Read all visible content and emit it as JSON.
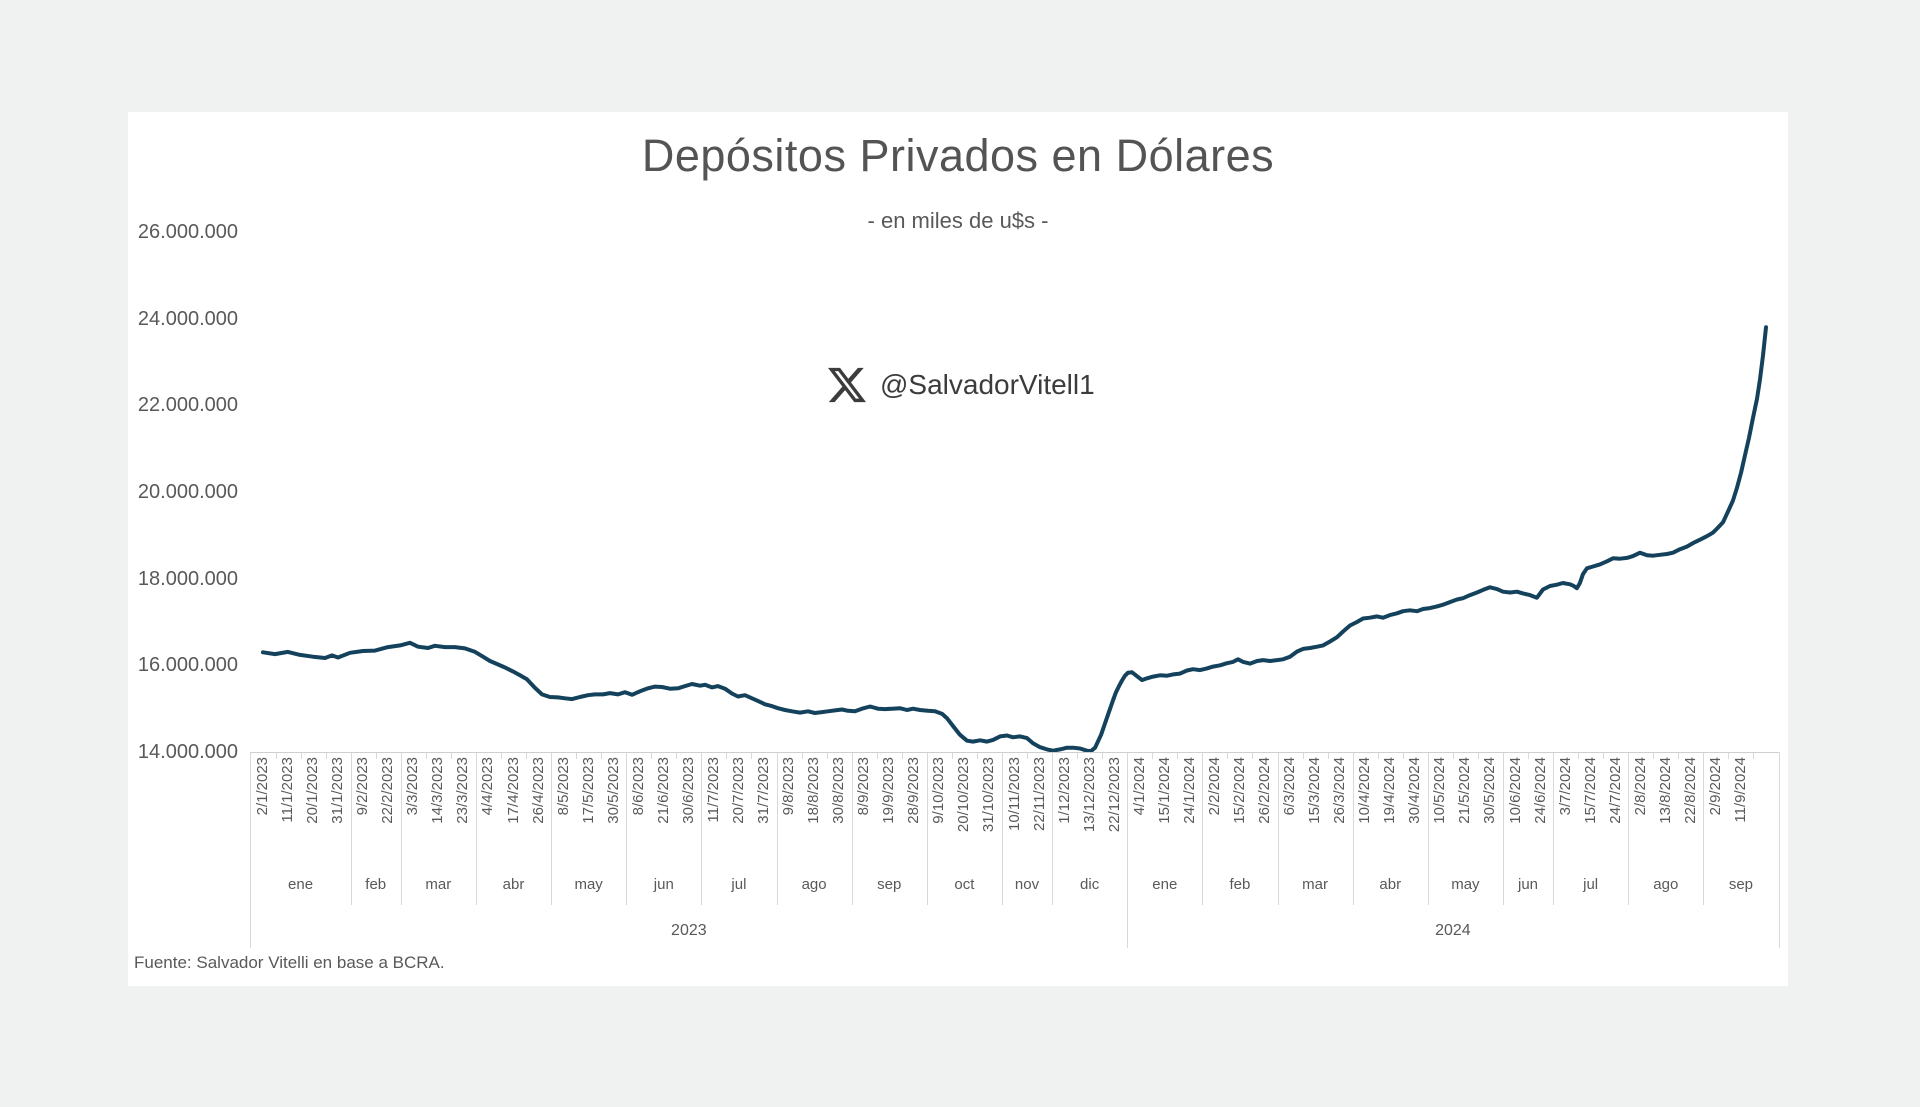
{
  "page": {
    "background": "#f0f1f1",
    "card_background": "#ffffff"
  },
  "header": {
    "title": "Depósitos Privados en Dólares",
    "subtitle": "- en miles de u$s -"
  },
  "watermark": {
    "icon": "x-logo-icon",
    "handle": "@SalvadorVitell1"
  },
  "footer": {
    "source_note": "Fuente: Salvador Vitelli en base a BCRA."
  },
  "chart_data": {
    "type": "line",
    "title": "Depósitos Privados en Dólares",
    "subtitle": "- en miles de u$s -",
    "unit": "miles de u$s",
    "line_color": "#14425c",
    "grid": false,
    "legend": "none",
    "ylim": [
      14000000,
      26000000
    ],
    "y_ticks": [
      {
        "label": "26.000.000",
        "value": 26
      },
      {
        "label": "24.000.000",
        "value": 24
      },
      {
        "label": "22.000.000",
        "value": 22
      },
      {
        "label": "20.000.000",
        "value": 20
      },
      {
        "label": "18.000.000",
        "value": 18
      },
      {
        "label": "16.000.000",
        "value": 16
      },
      {
        "label": "14.000.000",
        "value": 14
      }
    ],
    "y_value_multiplier": 1000000,
    "x_tick_labels": [
      "2/1/2023",
      "11/1/2023",
      "20/1/2023",
      "31/1/2023",
      "9/2/2023",
      "22/2/2023",
      "3/3/2023",
      "14/3/2023",
      "23/3/2023",
      "4/4/2023",
      "17/4/2023",
      "26/4/2023",
      "8/5/2023",
      "17/5/2023",
      "30/5/2023",
      "8/6/2023",
      "21/6/2023",
      "30/6/2023",
      "11/7/2023",
      "20/7/2023",
      "31/7/2023",
      "9/8/2023",
      "18/8/2023",
      "30/8/2023",
      "8/9/2023",
      "19/9/2023",
      "28/9/2023",
      "9/10/2023",
      "20/10/2023",
      "31/10/2023",
      "10/11/2023",
      "22/11/2023",
      "1/12/2023",
      "13/12/2023",
      "22/12/2023",
      "4/1/2024",
      "15/1/2024",
      "24/1/2024",
      "2/2/2024",
      "15/2/2024",
      "26/2/2024",
      "6/3/2024",
      "15/3/2024",
      "26/3/2024",
      "10/4/2024",
      "19/4/2024",
      "30/4/2024",
      "10/5/2024",
      "21/5/2024",
      "30/5/2024",
      "10/6/2024",
      "24/6/2024",
      "3/7/2024",
      "15/7/2024",
      "24/7/2024",
      "2/8/2024",
      "13/8/2024",
      "22/8/2024",
      "2/9/2024",
      "11/9/2024"
    ],
    "month_groups": [
      {
        "year": "2023",
        "label": "ene",
        "count": 4
      },
      {
        "year": "2023",
        "label": "feb",
        "count": 2
      },
      {
        "year": "2023",
        "label": "mar",
        "count": 3
      },
      {
        "year": "2023",
        "label": "abr",
        "count": 3
      },
      {
        "year": "2023",
        "label": "may",
        "count": 3
      },
      {
        "year": "2023",
        "label": "jun",
        "count": 3
      },
      {
        "year": "2023",
        "label": "jul",
        "count": 3
      },
      {
        "year": "2023",
        "label": "ago",
        "count": 3
      },
      {
        "year": "2023",
        "label": "sep",
        "count": 3
      },
      {
        "year": "2023",
        "label": "oct",
        "count": 3
      },
      {
        "year": "2023",
        "label": "nov",
        "count": 2
      },
      {
        "year": "2023",
        "label": "dic",
        "count": 3
      },
      {
        "year": "2024",
        "label": "ene",
        "count": 3
      },
      {
        "year": "2024",
        "label": "feb",
        "count": 3
      },
      {
        "year": "2024",
        "label": "mar",
        "count": 3
      },
      {
        "year": "2024",
        "label": "abr",
        "count": 3
      },
      {
        "year": "2024",
        "label": "may",
        "count": 3
      },
      {
        "year": "2024",
        "label": "jun",
        "count": 2
      },
      {
        "year": "2024",
        "label": "jul",
        "count": 3
      },
      {
        "year": "2024",
        "label": "ago",
        "count": 3
      },
      {
        "year": "2024",
        "label": "sep",
        "count": 2
      }
    ],
    "year_groups": [
      {
        "label": "2023",
        "count": 35
      },
      {
        "label": "2024",
        "count": 25
      }
    ],
    "points_format": "[fraction_of_time_axis, value_in_millions]",
    "points": [
      [
        0.0,
        16.3
      ],
      [
        0.008,
        16.26
      ],
      [
        0.0166,
        16.31
      ],
      [
        0.0246,
        16.24
      ],
      [
        0.0333,
        16.2
      ],
      [
        0.0413,
        16.17
      ],
      [
        0.0459,
        16.23
      ],
      [
        0.0499,
        16.18
      ],
      [
        0.0579,
        16.29
      ],
      [
        0.0665,
        16.33
      ],
      [
        0.0745,
        16.34
      ],
      [
        0.0832,
        16.42
      ],
      [
        0.0912,
        16.46
      ],
      [
        0.0978,
        16.52
      ],
      [
        0.1031,
        16.43
      ],
      [
        0.1098,
        16.4
      ],
      [
        0.1144,
        16.45
      ],
      [
        0.1211,
        16.42
      ],
      [
        0.1277,
        16.42
      ],
      [
        0.1344,
        16.39
      ],
      [
        0.1411,
        16.31
      ],
      [
        0.1464,
        16.2
      ],
      [
        0.151,
        16.1
      ],
      [
        0.1557,
        16.03
      ],
      [
        0.161,
        15.95
      ],
      [
        0.1663,
        15.86
      ],
      [
        0.171,
        15.77
      ],
      [
        0.1756,
        15.68
      ],
      [
        0.181,
        15.48
      ],
      [
        0.1856,
        15.33
      ],
      [
        0.1909,
        15.27
      ],
      [
        0.1963,
        15.26
      ],
      [
        0.2009,
        15.24
      ],
      [
        0.2056,
        15.22
      ],
      [
        0.2109,
        15.27
      ],
      [
        0.2162,
        15.31
      ],
      [
        0.2209,
        15.33
      ],
      [
        0.2262,
        15.33
      ],
      [
        0.2309,
        15.36
      ],
      [
        0.2362,
        15.33
      ],
      [
        0.2409,
        15.38
      ],
      [
        0.2455,
        15.32
      ],
      [
        0.2508,
        15.4
      ],
      [
        0.2562,
        15.47
      ],
      [
        0.2608,
        15.51
      ],
      [
        0.2655,
        15.5
      ],
      [
        0.2708,
        15.46
      ],
      [
        0.2761,
        15.47
      ],
      [
        0.2808,
        15.52
      ],
      [
        0.2854,
        15.57
      ],
      [
        0.2908,
        15.53
      ],
      [
        0.2941,
        15.55
      ],
      [
        0.2987,
        15.49
      ],
      [
        0.3027,
        15.52
      ],
      [
        0.3074,
        15.46
      ],
      [
        0.312,
        15.35
      ],
      [
        0.316,
        15.28
      ],
      [
        0.3207,
        15.31
      ],
      [
        0.324,
        15.26
      ],
      [
        0.3293,
        15.18
      ],
      [
        0.334,
        15.1
      ],
      [
        0.3386,
        15.06
      ],
      [
        0.3426,
        15.01
      ],
      [
        0.3473,
        14.97
      ],
      [
        0.3519,
        14.94
      ],
      [
        0.3573,
        14.91
      ],
      [
        0.3626,
        14.94
      ],
      [
        0.3672,
        14.9
      ],
      [
        0.3719,
        14.92
      ],
      [
        0.3759,
        14.94
      ],
      [
        0.3806,
        14.96
      ],
      [
        0.3852,
        14.98
      ],
      [
        0.3892,
        14.95
      ],
      [
        0.3939,
        14.94
      ],
      [
        0.3985,
        15.0
      ],
      [
        0.4039,
        15.05
      ],
      [
        0.4092,
        15.0
      ],
      [
        0.4138,
        14.99
      ],
      [
        0.4185,
        15.0
      ],
      [
        0.4238,
        15.01
      ],
      [
        0.4285,
        14.97
      ],
      [
        0.4325,
        15.0
      ],
      [
        0.4371,
        14.97
      ],
      [
        0.4424,
        14.95
      ],
      [
        0.4471,
        14.94
      ],
      [
        0.4518,
        14.88
      ],
      [
        0.4551,
        14.78
      ],
      [
        0.4591,
        14.6
      ],
      [
        0.4637,
        14.4
      ],
      [
        0.4684,
        14.26
      ],
      [
        0.4724,
        14.24
      ],
      [
        0.4771,
        14.27
      ],
      [
        0.4817,
        14.24
      ],
      [
        0.4857,
        14.28
      ],
      [
        0.4904,
        14.36
      ],
      [
        0.495,
        14.38
      ],
      [
        0.499,
        14.34
      ],
      [
        0.5037,
        14.36
      ],
      [
        0.5083,
        14.32
      ],
      [
        0.5123,
        14.2
      ],
      [
        0.517,
        14.11
      ],
      [
        0.5216,
        14.06
      ],
      [
        0.5256,
        14.03
      ],
      [
        0.5303,
        14.06
      ],
      [
        0.5349,
        14.1
      ],
      [
        0.5389,
        14.1
      ],
      [
        0.5436,
        14.08
      ],
      [
        0.5482,
        14.03
      ],
      [
        0.5509,
        14.02
      ],
      [
        0.5536,
        14.1
      ],
      [
        0.5556,
        14.25
      ],
      [
        0.5576,
        14.4
      ],
      [
        0.5596,
        14.6
      ],
      [
        0.5616,
        14.8
      ],
      [
        0.5636,
        15.0
      ],
      [
        0.5656,
        15.2
      ],
      [
        0.5675,
        15.38
      ],
      [
        0.5695,
        15.52
      ],
      [
        0.5715,
        15.65
      ],
      [
        0.5735,
        15.76
      ],
      [
        0.5755,
        15.83
      ],
      [
        0.5782,
        15.84
      ],
      [
        0.5815,
        15.75
      ],
      [
        0.5848,
        15.66
      ],
      [
        0.5882,
        15.7
      ],
      [
        0.5922,
        15.74
      ],
      [
        0.5968,
        15.77
      ],
      [
        0.6015,
        15.76
      ],
      [
        0.6055,
        15.79
      ],
      [
        0.6101,
        15.81
      ],
      [
        0.6148,
        15.88
      ],
      [
        0.6188,
        15.91
      ],
      [
        0.6234,
        15.89
      ],
      [
        0.6281,
        15.93
      ],
      [
        0.6321,
        15.97
      ],
      [
        0.6368,
        16.0
      ],
      [
        0.6414,
        16.05
      ],
      [
        0.6454,
        16.08
      ],
      [
        0.6487,
        16.14
      ],
      [
        0.6521,
        16.08
      ],
      [
        0.6567,
        16.04
      ],
      [
        0.6614,
        16.1
      ],
      [
        0.6654,
        16.12
      ],
      [
        0.67,
        16.1
      ],
      [
        0.6747,
        16.12
      ],
      [
        0.6787,
        16.14
      ],
      [
        0.6833,
        16.2
      ],
      [
        0.688,
        16.32
      ],
      [
        0.692,
        16.38
      ],
      [
        0.6966,
        16.4
      ],
      [
        0.7013,
        16.43
      ],
      [
        0.7053,
        16.46
      ],
      [
        0.7099,
        16.55
      ],
      [
        0.7146,
        16.65
      ],
      [
        0.7186,
        16.78
      ],
      [
        0.7232,
        16.92
      ],
      [
        0.7279,
        17.0
      ],
      [
        0.7319,
        17.08
      ],
      [
        0.7365,
        17.1
      ],
      [
        0.7412,
        17.13
      ],
      [
        0.7452,
        17.1
      ],
      [
        0.7498,
        17.16
      ],
      [
        0.7545,
        17.2
      ],
      [
        0.7585,
        17.25
      ],
      [
        0.7631,
        17.27
      ],
      [
        0.7678,
        17.25
      ],
      [
        0.7718,
        17.3
      ],
      [
        0.7764,
        17.32
      ],
      [
        0.7811,
        17.36
      ],
      [
        0.7851,
        17.4
      ],
      [
        0.7897,
        17.46
      ],
      [
        0.7944,
        17.52
      ],
      [
        0.7984,
        17.55
      ],
      [
        0.8031,
        17.62
      ],
      [
        0.8077,
        17.68
      ],
      [
        0.8117,
        17.74
      ],
      [
        0.8164,
        17.8
      ],
      [
        0.821,
        17.76
      ],
      [
        0.825,
        17.7
      ],
      [
        0.8297,
        17.68
      ],
      [
        0.8343,
        17.7
      ],
      [
        0.8383,
        17.66
      ],
      [
        0.843,
        17.62
      ],
      [
        0.8476,
        17.56
      ],
      [
        0.8516,
        17.75
      ],
      [
        0.8563,
        17.83
      ],
      [
        0.8609,
        17.86
      ],
      [
        0.8649,
        17.9
      ],
      [
        0.8696,
        17.87
      ],
      [
        0.8716,
        17.84
      ],
      [
        0.8742,
        17.78
      ],
      [
        0.8762,
        17.9
      ],
      [
        0.8782,
        18.1
      ],
      [
        0.8809,
        18.24
      ],
      [
        0.8849,
        18.28
      ],
      [
        0.8895,
        18.33
      ],
      [
        0.8942,
        18.4
      ],
      [
        0.8982,
        18.47
      ],
      [
        0.9028,
        18.46
      ],
      [
        0.9075,
        18.48
      ],
      [
        0.9115,
        18.52
      ],
      [
        0.9162,
        18.6
      ],
      [
        0.9208,
        18.54
      ],
      [
        0.9248,
        18.53
      ],
      [
        0.9295,
        18.55
      ],
      [
        0.9341,
        18.57
      ],
      [
        0.9381,
        18.6
      ],
      [
        0.9428,
        18.68
      ],
      [
        0.9474,
        18.74
      ],
      [
        0.9514,
        18.82
      ],
      [
        0.9561,
        18.9
      ],
      [
        0.9607,
        18.98
      ],
      [
        0.9647,
        19.06
      ],
      [
        0.9681,
        19.18
      ],
      [
        0.9714,
        19.3
      ],
      [
        0.9747,
        19.55
      ],
      [
        0.978,
        19.8
      ],
      [
        0.9807,
        20.1
      ],
      [
        0.9834,
        20.45
      ],
      [
        0.986,
        20.85
      ],
      [
        0.9887,
        21.25
      ],
      [
        0.9913,
        21.7
      ],
      [
        0.994,
        22.15
      ],
      [
        0.996,
        22.6
      ],
      [
        0.998,
        23.15
      ],
      [
        1.0,
        23.8
      ]
    ]
  }
}
